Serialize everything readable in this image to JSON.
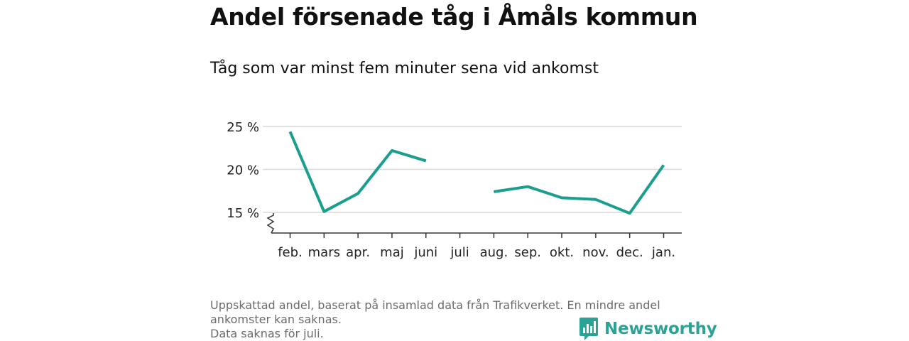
{
  "title": "Andel försenade tåg i Åmåls kommun",
  "subtitle": "Tåg som var minst fem minuter sena vid ankomst",
  "footer": {
    "line1": "Uppskattad andel, baserat på insamlad data från Trafikverket. En mindre andel",
    "line2": "ankomster kan saknas.",
    "line3": "Data saknas för juli."
  },
  "brand": {
    "name": "Newsworthy",
    "icon": "bar-chart-speech-bubble-icon"
  },
  "colors": {
    "line": "#1a9e8e",
    "grid": "#d9d9d9",
    "axis": "#333333",
    "brand": "#2aa396"
  },
  "chart_data": {
    "type": "line",
    "categories": [
      "feb.",
      "mars",
      "apr.",
      "maj",
      "juni",
      "juli",
      "aug.",
      "sep.",
      "okt.",
      "nov.",
      "dec.",
      "jan."
    ],
    "series": [
      {
        "values": [
          24.4,
          15.1,
          17.2,
          22.2,
          21.0,
          null,
          17.4,
          18.0,
          16.7,
          16.5,
          14.9,
          20.5
        ]
      }
    ],
    "yticks": [
      15,
      20,
      25
    ],
    "ytick_labels": [
      "15 %",
      "20 %",
      "25 %"
    ],
    "ylim": [
      12.6,
      25
    ],
    "y_axis_break": true,
    "grid": true,
    "xlabel": "",
    "ylabel": ""
  }
}
